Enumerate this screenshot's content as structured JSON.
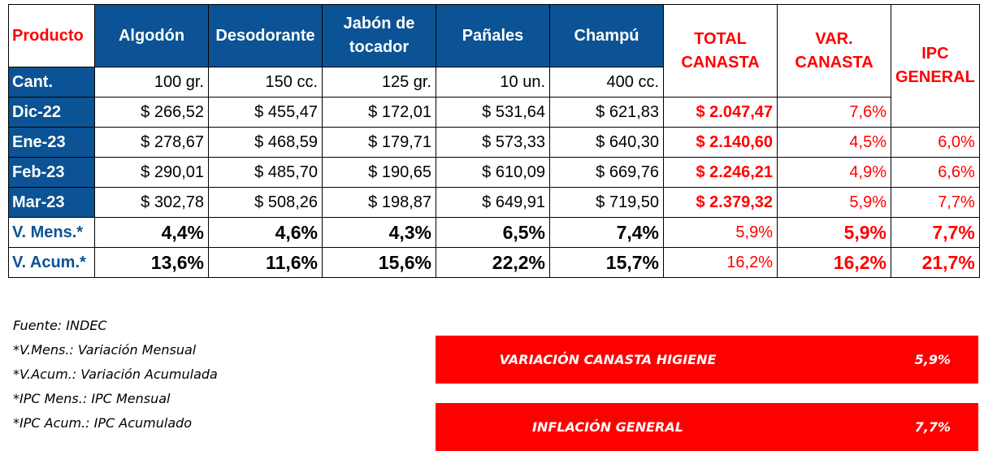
{
  "table": {
    "header": {
      "producto": "Producto",
      "products": [
        "Algodón",
        "Desodorante",
        "Jabón de tocador",
        "Pañales",
        "Champú"
      ],
      "total": "TOTAL CANASTA",
      "var": "VAR. CANASTA",
      "ipc": "IPC GENERAL"
    },
    "qty": {
      "label": "Cant.",
      "values": [
        "100 gr.",
        "150 cc.",
        "125 gr.",
        "10 un.",
        "400 cc."
      ]
    },
    "rows": [
      {
        "label": "Dic-22",
        "prices": [
          "$ 266,52",
          "$ 455,47",
          "$ 172,01",
          "$ 531,64",
          "$ 621,83"
        ],
        "total": "$ 2.047,47",
        "var": "7,6%",
        "ipc": ""
      },
      {
        "label": "Ene-23",
        "prices": [
          "$ 278,67",
          "$ 468,59",
          "$ 179,71",
          "$ 573,33",
          "$ 640,30"
        ],
        "total": "$ 2.140,60",
        "var": "4,5%",
        "ipc": "6,0%"
      },
      {
        "label": "Feb-23",
        "prices": [
          "$ 290,01",
          "$ 485,70",
          "$ 190,65",
          "$ 610,09",
          "$ 669,76"
        ],
        "total": "$ 2.246,21",
        "var": "4,9%",
        "ipc": "6,6%"
      },
      {
        "label": "Mar-23",
        "prices": [
          "$ 302,78",
          "$ 508,26",
          "$ 198,87",
          "$ 649,91",
          "$ 719,50"
        ],
        "total": "$ 2.379,32",
        "var": "5,9%",
        "ipc": "7,7%"
      }
    ],
    "vmens": {
      "label": "V. Mens.*",
      "values": [
        "4,4%",
        "4,6%",
        "4,3%",
        "6,5%",
        "7,4%"
      ],
      "total": "5,9%",
      "var": "5,9%",
      "ipc": "7,7%"
    },
    "vacum": {
      "label": "V. Acum.*",
      "values": [
        "13,6%",
        "11,6%",
        "15,6%",
        "22,2%",
        "15,7%"
      ],
      "total": "16,2%",
      "var": "16,2%",
      "ipc": "21,7%"
    }
  },
  "notes": [
    "Fuente: INDEC",
    "*V.Mens.: Variación Mensual",
    "*V.Acum.: Variación Acumulada",
    "*IPC Mens.: IPC Mensual",
    "*IPC Acum.: IPC Acumulado"
  ],
  "summary": [
    {
      "label": "VARIACIÓN CANASTA HIGIENE",
      "value": "5,9%"
    },
    {
      "label": "INFLACIÓN GENERAL",
      "value": "7,7%"
    }
  ],
  "colors": {
    "header_blue": "#0b5394",
    "accent_red": "#ff0000"
  }
}
